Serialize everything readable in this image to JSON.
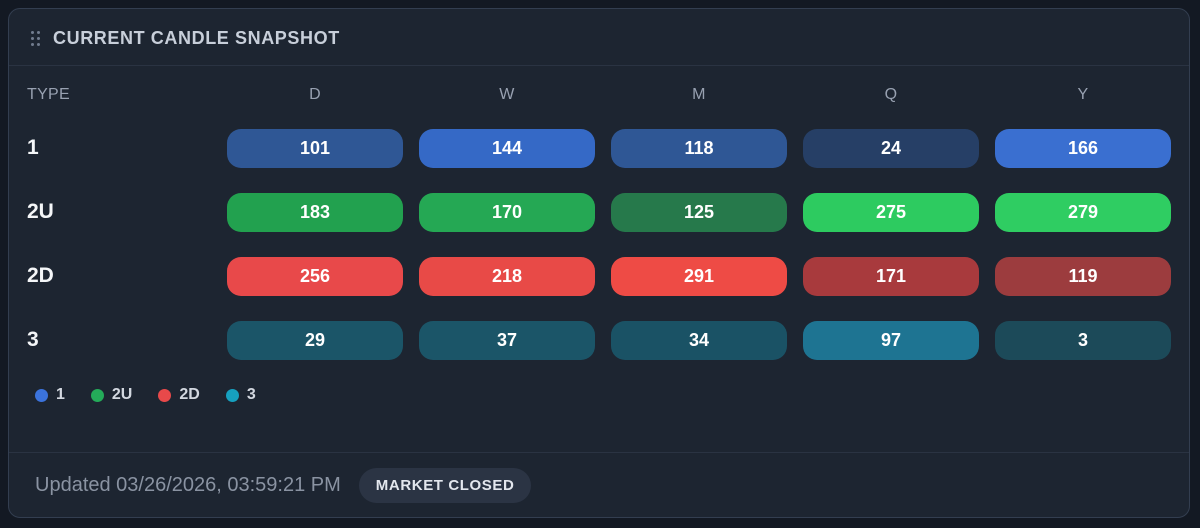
{
  "widget": {
    "title": "CURRENT CANDLE SNAPSHOT",
    "columns": [
      "TYPE",
      "D",
      "W",
      "M",
      "Q",
      "Y"
    ],
    "rows": [
      {
        "label": "1",
        "cells": [
          {
            "value": "101",
            "color": "#2f5795"
          },
          {
            "value": "144",
            "color": "#3569c6"
          },
          {
            "value": "118",
            "color": "#2f5795"
          },
          {
            "value": "24",
            "color": "#263f66"
          },
          {
            "value": "166",
            "color": "#3a6fd0"
          }
        ]
      },
      {
        "label": "2U",
        "cells": [
          {
            "value": "183",
            "color": "#22a14f"
          },
          {
            "value": "170",
            "color": "#25a854"
          },
          {
            "value": "125",
            "color": "#26794b"
          },
          {
            "value": "275",
            "color": "#2dcb60"
          },
          {
            "value": "279",
            "color": "#2fcd62"
          }
        ]
      },
      {
        "label": "2D",
        "cells": [
          {
            "value": "256",
            "color": "#e8494a"
          },
          {
            "value": "218",
            "color": "#e84a47"
          },
          {
            "value": "291",
            "color": "#ee4b45"
          },
          {
            "value": "171",
            "color": "#a83a3d"
          },
          {
            "value": "119",
            "color": "#9c3c3e"
          }
        ]
      },
      {
        "label": "3",
        "cells": [
          {
            "value": "29",
            "color": "#1b5568"
          },
          {
            "value": "37",
            "color": "#1b5568"
          },
          {
            "value": "34",
            "color": "#1a5265"
          },
          {
            "value": "97",
            "color": "#1e7492"
          },
          {
            "value": "3",
            "color": "#1c4a59"
          }
        ]
      }
    ],
    "legend": [
      {
        "label": "1",
        "color": "#3b73dc"
      },
      {
        "label": "2U",
        "color": "#24ab59"
      },
      {
        "label": "2D",
        "color": "#e8494a"
      },
      {
        "label": "3",
        "color": "#16a0bf"
      }
    ],
    "footer": {
      "updated": "Updated 03/26/2026, 03:59:21 PM",
      "badge": "MARKET CLOSED"
    }
  },
  "colors": {
    "page_bg": "#131923",
    "card_bg": "#1d2531",
    "card_border": "#333e50",
    "divider": "#2a3342",
    "badge_bg": "#2b3444",
    "header_text": "#98a1b1",
    "muted_text": "#8a93a2"
  },
  "chart_data": {
    "type": "table",
    "title": "CURRENT CANDLE SNAPSHOT",
    "categories": [
      "D",
      "W",
      "M",
      "Q",
      "Y"
    ],
    "series": [
      {
        "name": "1",
        "values": [
          101,
          144,
          118,
          24,
          166
        ]
      },
      {
        "name": "2U",
        "values": [
          183,
          170,
          125,
          275,
          279
        ]
      },
      {
        "name": "2D",
        "values": [
          256,
          218,
          291,
          171,
          119
        ]
      },
      {
        "name": "3",
        "values": [
          29,
          37,
          34,
          97,
          3
        ]
      }
    ],
    "legend_position": "bottom-left"
  }
}
